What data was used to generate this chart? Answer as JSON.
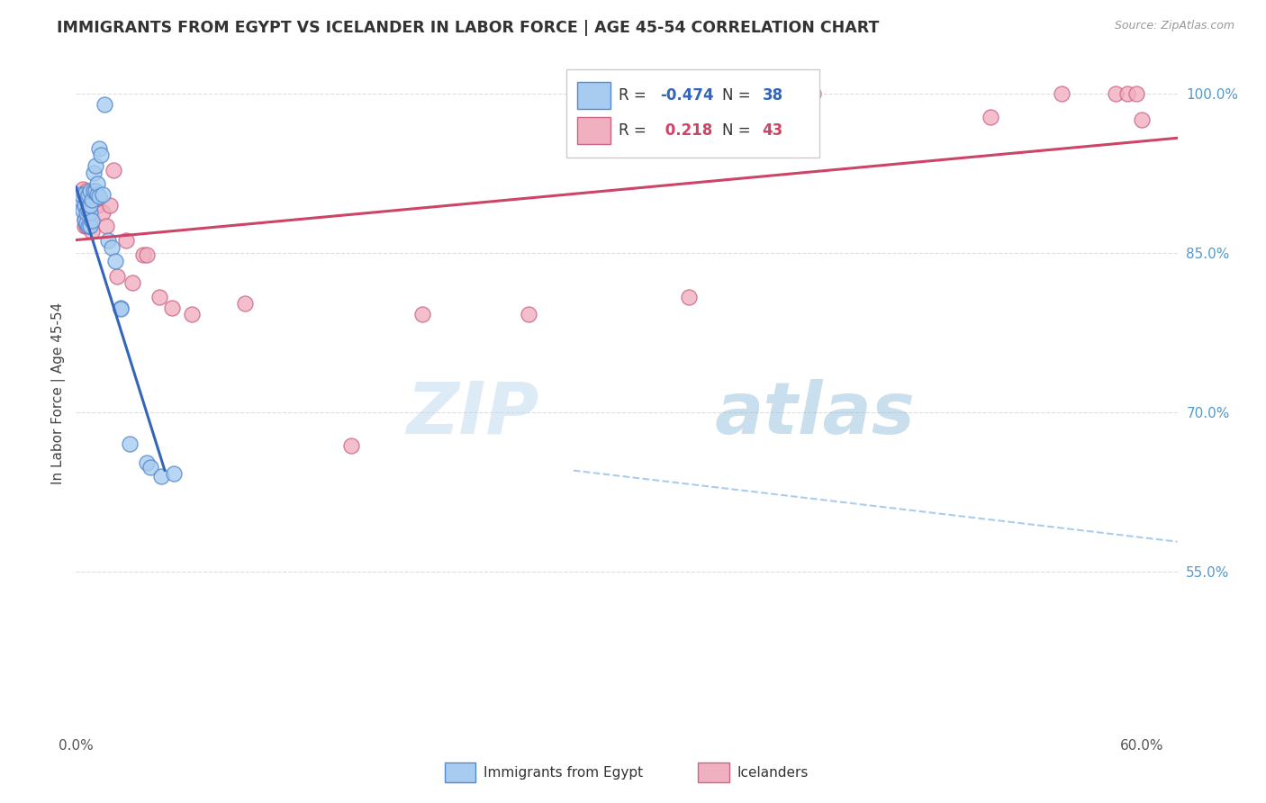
{
  "title": "IMMIGRANTS FROM EGYPT VS ICELANDER IN LABOR FORCE | AGE 45-54 CORRELATION CHART",
  "source": "Source: ZipAtlas.com",
  "ylabel": "In Labor Force | Age 45-54",
  "xlim": [
    0.0,
    0.62
  ],
  "ylim": [
    0.4,
    1.035
  ],
  "xticks": [
    0.0,
    0.1,
    0.2,
    0.3,
    0.4,
    0.5,
    0.6
  ],
  "xticklabels": [
    "0.0%",
    "",
    "",
    "",
    "",
    "",
    "60.0%"
  ],
  "ytick_positions": [
    0.55,
    0.7,
    0.85,
    1.0
  ],
  "ytick_labels_right": [
    "55.0%",
    "70.0%",
    "85.0%",
    "100.0%"
  ],
  "blue_color": "#A8CCF0",
  "pink_color": "#F0B0C0",
  "blue_edge_color": "#5588CC",
  "pink_edge_color": "#CC6688",
  "blue_line_color": "#3366BB",
  "pink_line_color": "#CC4466",
  "dashed_line_color": "#AACCEE",
  "egypt_x": [
    0.003,
    0.003,
    0.004,
    0.005,
    0.005,
    0.005,
    0.006,
    0.006,
    0.007,
    0.007,
    0.007,
    0.008,
    0.008,
    0.008,
    0.008,
    0.009,
    0.009,
    0.01,
    0.01,
    0.011,
    0.011,
    0.012,
    0.012,
    0.013,
    0.013,
    0.014,
    0.015,
    0.016,
    0.018,
    0.02,
    0.022,
    0.025,
    0.025,
    0.03,
    0.04,
    0.042,
    0.048,
    0.055
  ],
  "egypt_y": [
    0.9,
    0.905,
    0.89,
    0.88,
    0.895,
    0.905,
    0.878,
    0.888,
    0.875,
    0.89,
    0.905,
    0.875,
    0.888,
    0.895,
    0.908,
    0.88,
    0.9,
    0.908,
    0.925,
    0.908,
    0.932,
    0.905,
    0.915,
    0.903,
    0.948,
    0.942,
    0.905,
    0.99,
    0.862,
    0.855,
    0.842,
    0.798,
    0.797,
    0.67,
    0.652,
    0.648,
    0.64,
    0.642
  ],
  "iceland_x": [
    0.003,
    0.004,
    0.004,
    0.004,
    0.005,
    0.005,
    0.006,
    0.006,
    0.006,
    0.007,
    0.007,
    0.008,
    0.008,
    0.009,
    0.009,
    0.011,
    0.011,
    0.012,
    0.013,
    0.015,
    0.017,
    0.019,
    0.021,
    0.023,
    0.028,
    0.032,
    0.038,
    0.04,
    0.047,
    0.054,
    0.065,
    0.095,
    0.155,
    0.195,
    0.255,
    0.345,
    0.415,
    0.515,
    0.555,
    0.585,
    0.592,
    0.597,
    0.6
  ],
  "iceland_y": [
    0.9,
    0.9,
    0.905,
    0.91,
    0.875,
    0.882,
    0.875,
    0.892,
    0.908,
    0.875,
    0.9,
    0.882,
    0.9,
    0.87,
    0.9,
    0.9,
    0.908,
    0.895,
    0.902,
    0.888,
    0.875,
    0.895,
    0.928,
    0.828,
    0.862,
    0.822,
    0.848,
    0.848,
    0.808,
    0.798,
    0.792,
    0.802,
    0.668,
    0.792,
    0.792,
    0.808,
    1.0,
    0.978,
    1.0,
    1.0,
    1.0,
    1.0,
    0.975
  ],
  "blue_trend_x": [
    0.0,
    0.05
  ],
  "blue_trend_y": [
    0.912,
    0.645
  ],
  "pink_trend_x": [
    0.0,
    0.62
  ],
  "pink_trend_y": [
    0.862,
    0.958
  ],
  "dashed_trend_x": [
    0.28,
    0.62
  ],
  "dashed_trend_y": [
    0.645,
    0.578
  ],
  "watermark_zip": "ZIP",
  "watermark_atlas": "atlas",
  "grid_color": "#DDDDDD",
  "legend_r_blue": "R = -0.474",
  "legend_n_blue": "N = 38",
  "legend_r_pink": "R =  0.218",
  "legend_n_pink": "N = 43"
}
